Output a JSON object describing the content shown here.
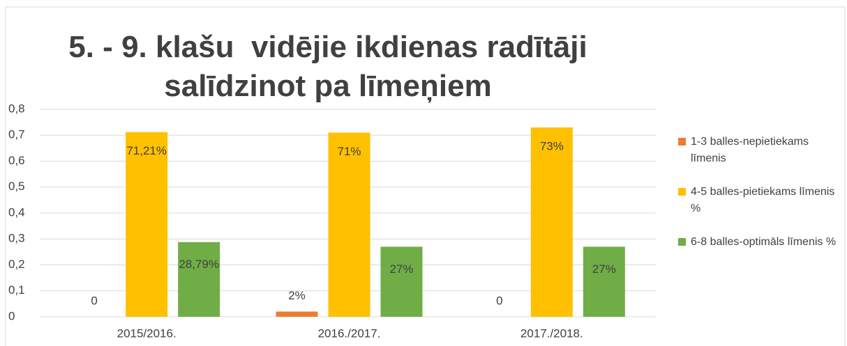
{
  "chart_data": {
    "type": "bar",
    "title": "5. - 9. klašu  vidējie ikdienas radītāji salīdzinot pa līmeņiem",
    "categories": [
      "2015/2016.",
      "2016./2017.",
      "2017./2018."
    ],
    "series": [
      {
        "name": "1-3 balles-nepietiekams līmenis",
        "color": "#ed7d31",
        "values": [
          0,
          0.02,
          0
        ],
        "value_labels": [
          "0",
          "2%",
          "0"
        ]
      },
      {
        "name": "4-5 balles-pietiekams līmenis %",
        "color": "#ffc000",
        "values": [
          0.7121,
          0.71,
          0.73
        ],
        "value_labels": [
          "71,21%",
          "71%",
          "73%"
        ]
      },
      {
        "name": "6-8  balles-optimāls līmenis %",
        "color": "#70ad47",
        "values": [
          0.2879,
          0.27,
          0.27
        ],
        "value_labels": [
          "28,79%",
          "27%",
          "27%"
        ]
      }
    ],
    "ylim": [
      0,
      0.8
    ],
    "yticks": [
      0,
      {
        "value": 0.1,
        "label": "0,1"
      },
      {
        "value": 0.2,
        "label": "0,2"
      },
      {
        "value": 0.3,
        "label": "0,3"
      },
      {
        "value": 0.4,
        "label": "0,4"
      },
      {
        "value": 0.5,
        "label": "0,5"
      },
      {
        "value": 0.6,
        "label": "0,6"
      },
      {
        "value": 0.7,
        "label": "0,7"
      },
      {
        "value": 0.8,
        "label": "0,8"
      }
    ],
    "grid": true,
    "legend": "right"
  }
}
